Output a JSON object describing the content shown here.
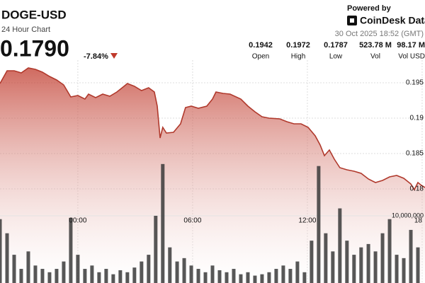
{
  "header": {
    "title": "DOGE-USD",
    "subtitle": "24 Hour Chart",
    "price": "0.1790",
    "change": "-7.84%",
    "powered_by": "Powered by",
    "brand": "CoinDesk Data",
    "timestamp": "30 Oct 2025 18:52 (GMT)"
  },
  "stats": [
    {
      "value": "0.1942",
      "label": "Open"
    },
    {
      "value": "0.1972",
      "label": "High"
    },
    {
      "value": "0.1787",
      "label": "Low"
    },
    {
      "value": "523.78 M",
      "label": "Vol"
    },
    {
      "value": "98.17 M",
      "label": "Vol USD"
    }
  ],
  "chart_data": [
    {
      "type": "area",
      "x": [
        -4.07,
        -3.7,
        -3.33,
        -2.96,
        -2.59,
        -2.22,
        -1.85,
        -1.48,
        -1.11,
        -0.74,
        -0.37,
        0,
        0.37,
        0.56,
        0.93,
        1.3,
        1.67,
        2.04,
        2.41,
        2.59,
        2.96,
        3.33,
        3.7,
        4.0,
        4.15,
        4.3,
        4.44,
        4.63,
        5.0,
        5.37,
        5.63,
        5.93,
        6.3,
        6.74,
        7.04,
        7.22,
        7.59,
        7.96,
        8.52,
        8.89,
        9.26,
        9.63,
        10.0,
        10.56,
        10.93,
        11.3,
        11.67,
        12.04,
        12.41,
        12.67,
        12.89,
        13.15,
        13.41,
        13.7,
        14.07,
        14.44,
        14.81,
        15.19,
        15.56,
        15.93,
        16.3,
        16.67,
        17.04,
        17.41,
        17.59,
        17.78,
        17.96,
        18.15
      ],
      "series": [
        {
          "name": "DOGE-USD",
          "color": "#b0392c",
          "values": [
            0.1949,
            0.1967,
            0.1967,
            0.1964,
            0.1971,
            0.1969,
            0.1965,
            0.1959,
            0.1954,
            0.1947,
            0.193,
            0.1932,
            0.1927,
            0.1934,
            0.1929,
            0.1934,
            0.1931,
            0.1937,
            0.1945,
            0.1949,
            0.1945,
            0.1939,
            0.1943,
            0.1937,
            0.1917,
            0.1872,
            0.1887,
            0.1879,
            0.188,
            0.1892,
            0.1915,
            0.1917,
            0.1914,
            0.1917,
            0.1927,
            0.1937,
            0.1935,
            0.1934,
            0.1927,
            0.1917,
            0.1909,
            0.1902,
            0.19,
            0.1899,
            0.1895,
            0.1892,
            0.1892,
            0.1887,
            0.1875,
            0.1862,
            0.1847,
            0.1855,
            0.1842,
            0.183,
            0.1827,
            0.1825,
            0.1822,
            0.1814,
            0.1809,
            0.1812,
            0.1817,
            0.1819,
            0.1815,
            0.1807,
            0.1799,
            0.1809,
            0.1805,
            0.1802
          ]
        }
      ],
      "xlim": [
        -4.07,
        18.15
      ],
      "xticks": [
        {
          "value": 0,
          "label": "00:00"
        },
        {
          "value": 6,
          "label": "06:00"
        },
        {
          "value": 12,
          "label": "12:00"
        },
        {
          "value": 18,
          "label": "18"
        }
      ],
      "ylim": [
        0.1667,
        0.1982
      ],
      "yticks": [
        0.195,
        0.19,
        0.185,
        0.18
      ],
      "grid": true
    },
    {
      "type": "bar",
      "x": [
        -4.07,
        -3.7,
        -3.33,
        -2.96,
        -2.59,
        -2.22,
        -1.85,
        -1.48,
        -1.11,
        -0.74,
        -0.37,
        0,
        0.37,
        0.74,
        1.11,
        1.48,
        1.85,
        2.22,
        2.59,
        2.96,
        3.33,
        3.7,
        4.07,
        4.44,
        4.81,
        5.19,
        5.56,
        5.93,
        6.3,
        6.67,
        7.04,
        7.41,
        7.78,
        8.15,
        8.52,
        8.89,
        9.26,
        9.63,
        10,
        10.37,
        10.74,
        11.11,
        11.48,
        11.85,
        12.22,
        12.59,
        12.96,
        13.33,
        13.7,
        14.07,
        14.44,
        14.81,
        15.19,
        15.56,
        15.93,
        16.3,
        16.67,
        17.04,
        17.41,
        17.78
      ],
      "values": [
        9500000,
        7400000,
        4200000,
        2100000,
        4700000,
        2600000,
        2100000,
        1600000,
        2100000,
        3200000,
        9700000,
        4200000,
        2100000,
        2600000,
        1600000,
        2100000,
        1300000,
        1900000,
        1600000,
        2300000,
        3200000,
        4200000,
        10000000,
        17700000,
        5300000,
        3200000,
        3700000,
        2600000,
        2100000,
        1600000,
        2600000,
        1900000,
        1600000,
        2100000,
        1300000,
        1600000,
        1100000,
        1300000,
        1600000,
        2100000,
        2600000,
        2100000,
        3200000,
        1600000,
        6300000,
        17400000,
        7400000,
        4700000,
        11100000,
        6300000,
        4200000,
        5300000,
        5800000,
        4700000,
        7400000,
        9500000,
        4200000,
        3700000,
        7900000,
        5300000
      ],
      "color": "#3a3a3a",
      "xlim": [
        -4.07,
        18.15
      ],
      "ylim": [
        0,
        42100000
      ],
      "yticks": [
        {
          "value": 10000000,
          "label": "10,000,000"
        }
      ]
    }
  ]
}
